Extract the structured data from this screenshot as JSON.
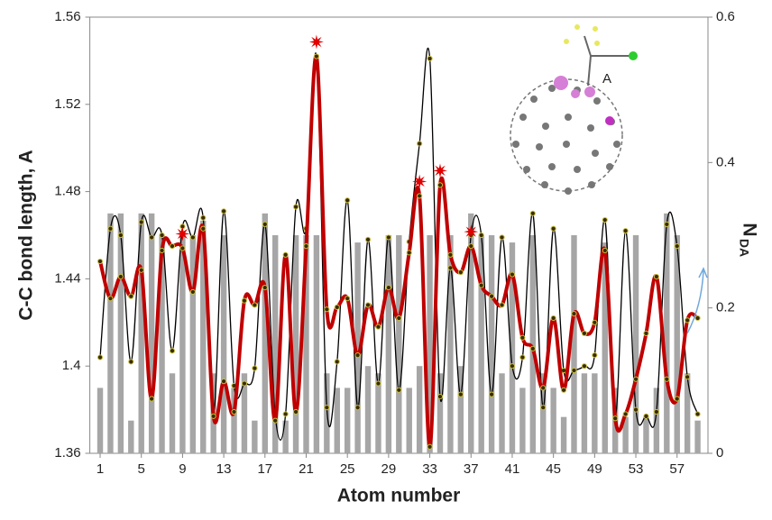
{
  "chart_data": {
    "type": "combo",
    "xlabel": "Atom number",
    "ylabel": "C-C bond length,  A",
    "y2label": "N",
    "y2label_sub": "DA",
    "annotation": "A",
    "xlim": [
      0,
      60
    ],
    "xticks": [
      1,
      5,
      9,
      13,
      17,
      21,
      25,
      29,
      33,
      37,
      41,
      45,
      49,
      53,
      57
    ],
    "ylim": [
      1.36,
      1.56
    ],
    "yticks": [
      1.36,
      1.4,
      1.44,
      1.48,
      1.52,
      1.56
    ],
    "y2lim": [
      0,
      0.6
    ],
    "y2ticks": [
      0,
      0.2,
      0.4,
      0.6
    ],
    "x": [
      1,
      2,
      3,
      4,
      5,
      6,
      7,
      8,
      9,
      10,
      11,
      12,
      13,
      14,
      15,
      16,
      17,
      18,
      19,
      20,
      21,
      22,
      23,
      24,
      25,
      26,
      27,
      28,
      29,
      30,
      31,
      32,
      33,
      34,
      35,
      36,
      37,
      38,
      39,
      40,
      41,
      42,
      43,
      44,
      45,
      46,
      47,
      48,
      49,
      50,
      51,
      52,
      53,
      54,
      55,
      56,
      57,
      58,
      59
    ],
    "series": [
      {
        "kind": "bar",
        "axis": "y2",
        "color": "#a6a6a6",
        "values": [
          0.09,
          0.33,
          0.33,
          0.045,
          0.33,
          0.33,
          0.3,
          0.11,
          0.3,
          0.3,
          0.32,
          0.11,
          0.3,
          0.09,
          0.11,
          0.045,
          0.33,
          0.3,
          0.045,
          0.3,
          0.3,
          0.3,
          0.11,
          0.09,
          0.09,
          0.29,
          0.12,
          0.11,
          0.3,
          0.3,
          0.09,
          0.12,
          0.3,
          0.11,
          0.3,
          0.12,
          0.33,
          0.3,
          0.3,
          0.11,
          0.29,
          0.09,
          0.3,
          0.11,
          0.09,
          0.05,
          0.3,
          0.11,
          0.11,
          0.29,
          0.09,
          0.05,
          0.3,
          0.05,
          0.09,
          0.33,
          0.3,
          0.11,
          0.045
        ]
      },
      {
        "kind": "line",
        "color": "#000000",
        "width": 1.3,
        "values": [
          1.404,
          1.463,
          1.46,
          1.402,
          1.466,
          1.459,
          1.46,
          1.407,
          1.464,
          1.459,
          1.468,
          1.378,
          1.471,
          1.391,
          1.392,
          1.399,
          1.465,
          1.377,
          1.378,
          1.473,
          1.463,
          1.542,
          1.381,
          1.402,
          1.476,
          1.381,
          1.458,
          1.392,
          1.459,
          1.389,
          1.457,
          1.502,
          1.541,
          1.386,
          1.445,
          1.387,
          1.46,
          1.46,
          1.387,
          1.459,
          1.4,
          1.404,
          1.47,
          1.381,
          1.463,
          1.398,
          1.398,
          1.4,
          1.405,
          1.467,
          1.377,
          1.462,
          1.38,
          1.377,
          1.379,
          1.465,
          1.455,
          1.395,
          1.378
        ]
      },
      {
        "kind": "line",
        "color": "#c00000",
        "width": 4,
        "values": [
          1.448,
          1.431,
          1.441,
          1.432,
          1.444,
          1.385,
          1.453,
          1.455,
          1.454,
          1.434,
          1.463,
          1.377,
          1.393,
          1.379,
          1.43,
          1.428,
          1.436,
          1.375,
          1.451,
          1.379,
          1.455,
          1.542,
          1.426,
          1.427,
          1.431,
          1.405,
          1.428,
          1.418,
          1.436,
          1.422,
          1.452,
          1.478,
          1.363,
          1.483,
          1.451,
          1.443,
          1.455,
          1.437,
          1.432,
          1.428,
          1.442,
          1.413,
          1.408,
          1.39,
          1.422,
          1.389,
          1.424,
          1.415,
          1.42,
          1.453,
          1.376,
          1.378,
          1.394,
          1.415,
          1.441,
          1.394,
          1.385,
          1.421,
          1.422
        ]
      }
    ],
    "starred_atoms": [
      9,
      22,
      32,
      34,
      37
    ],
    "star_color": "#e00000"
  }
}
